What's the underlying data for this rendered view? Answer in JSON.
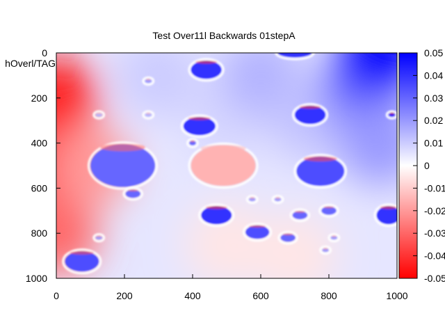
{
  "chart_data": {
    "type": "heatmap",
    "title": "Test Over11l Backwards 01stepA",
    "ylabel": "hOverl/TAG",
    "xlim": [
      0,
      1000
    ],
    "ylim": [
      0,
      1000
    ],
    "y_inverted": true,
    "x_ticks": [
      "0",
      "200",
      "400",
      "600",
      "800",
      "1000"
    ],
    "y_ticks": [
      "0",
      "200",
      "400",
      "600",
      "800",
      "1000"
    ],
    "colorbar": {
      "range": [
        -0.05,
        0.05
      ],
      "ticks": [
        "0.05",
        "0.04",
        "0.03",
        "0.02",
        "0.01",
        "0",
        "-0.01",
        "-0.02",
        "-0.03",
        "-0.04",
        "-0.05"
      ],
      "colors": {
        "min": "#ff0000",
        "mid": "#ffffff",
        "max": "#0000ff"
      }
    },
    "field": [
      {
        "x": 0,
        "y": 200,
        "value": -0.045
      },
      {
        "x": 0,
        "y": 500,
        "value": -0.05
      },
      {
        "x": 0,
        "y": 800,
        "value": -0.03
      },
      {
        "x": 100,
        "y": 500,
        "value": -0.02
      },
      {
        "x": 300,
        "y": 100,
        "value": 0.01
      },
      {
        "x": 500,
        "y": 300,
        "value": 0.008
      },
      {
        "x": 600,
        "y": 100,
        "value": 0.015
      },
      {
        "x": 750,
        "y": 300,
        "value": 0.012
      },
      {
        "x": 900,
        "y": 150,
        "value": 0.03
      },
      {
        "x": 950,
        "y": 400,
        "value": 0.02
      },
      {
        "x": 950,
        "y": 0,
        "value": 0.05
      },
      {
        "x": 500,
        "y": 850,
        "value": -0.005
      },
      {
        "x": 700,
        "y": 900,
        "value": -0.005
      }
    ],
    "inclusions": [
      {
        "x": 440,
        "y": 75,
        "rx": 45,
        "ry": 40,
        "value": 0.04
      },
      {
        "x": 270,
        "y": 125,
        "rx": 10,
        "ry": 8,
        "value": 0.02
      },
      {
        "x": 125,
        "y": 275,
        "rx": 10,
        "ry": 8,
        "value": 0.015
      },
      {
        "x": 270,
        "y": 275,
        "rx": 10,
        "ry": 8,
        "value": 0.015
      },
      {
        "x": 420,
        "y": 325,
        "rx": 47,
        "ry": 40,
        "value": 0.04
      },
      {
        "x": 745,
        "y": 275,
        "rx": 45,
        "ry": 40,
        "value": 0.04
      },
      {
        "x": 400,
        "y": 400,
        "rx": 10,
        "ry": 10,
        "value": 0.03
      },
      {
        "x": 195,
        "y": 500,
        "rx": 95,
        "ry": 95,
        "value": 0.03
      },
      {
        "x": 490,
        "y": 500,
        "rx": 95,
        "ry": 90,
        "value": -0.015
      },
      {
        "x": 775,
        "y": 525,
        "rx": 70,
        "ry": 65,
        "value": 0.035
      },
      {
        "x": 225,
        "y": 625,
        "rx": 22,
        "ry": 18,
        "value": 0.03
      },
      {
        "x": 575,
        "y": 650,
        "rx": 10,
        "ry": 8,
        "value": 0.02
      },
      {
        "x": 650,
        "y": 650,
        "rx": 10,
        "ry": 8,
        "value": 0.02
      },
      {
        "x": 470,
        "y": 720,
        "rx": 45,
        "ry": 40,
        "value": 0.04
      },
      {
        "x": 715,
        "y": 720,
        "rx": 22,
        "ry": 18,
        "value": 0.03
      },
      {
        "x": 800,
        "y": 700,
        "rx": 22,
        "ry": 18,
        "value": 0.03
      },
      {
        "x": 975,
        "y": 720,
        "rx": 35,
        "ry": 40,
        "value": 0.04
      },
      {
        "x": 590,
        "y": 795,
        "rx": 35,
        "ry": 30,
        "value": 0.035
      },
      {
        "x": 680,
        "y": 820,
        "rx": 22,
        "ry": 18,
        "value": 0.03
      },
      {
        "x": 125,
        "y": 820,
        "rx": 10,
        "ry": 8,
        "value": 0.02
      },
      {
        "x": 815,
        "y": 820,
        "rx": 10,
        "ry": 8,
        "value": 0.02
      },
      {
        "x": 790,
        "y": 875,
        "rx": 10,
        "ry": 8,
        "value": 0.02
      },
      {
        "x": 75,
        "y": 925,
        "rx": 50,
        "ry": 45,
        "value": 0.035
      },
      {
        "x": 985,
        "y": 275,
        "rx": 10,
        "ry": 8,
        "value": 0.045
      },
      {
        "x": 700,
        "y": 0,
        "rx": 50,
        "ry": 20,
        "value": 0.04
      }
    ]
  }
}
